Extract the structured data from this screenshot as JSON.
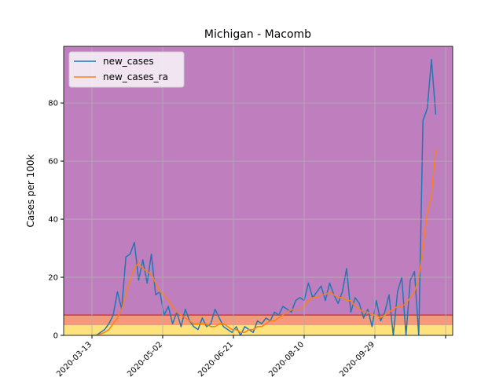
{
  "chart_data": {
    "type": "line",
    "title": "Michigan - Macomb",
    "y_label": "Cases per 100k",
    "x": [
      "2020-03-13",
      "2020-03-16",
      "2020-03-19",
      "2020-03-22",
      "2020-03-25",
      "2020-03-28",
      "2020-03-31",
      "2020-04-03",
      "2020-04-06",
      "2020-04-09",
      "2020-04-12",
      "2020-04-15",
      "2020-04-18",
      "2020-04-21",
      "2020-04-24",
      "2020-04-27",
      "2020-04-30",
      "2020-05-03",
      "2020-05-06",
      "2020-05-09",
      "2020-05-12",
      "2020-05-15",
      "2020-05-18",
      "2020-05-21",
      "2020-05-24",
      "2020-05-27",
      "2020-05-30",
      "2020-06-02",
      "2020-06-05",
      "2020-06-08",
      "2020-06-11",
      "2020-06-14",
      "2020-06-17",
      "2020-06-20",
      "2020-06-23",
      "2020-06-26",
      "2020-06-29",
      "2020-07-02",
      "2020-07-05",
      "2020-07-08",
      "2020-07-11",
      "2020-07-14",
      "2020-07-17",
      "2020-07-20",
      "2020-07-23",
      "2020-07-26",
      "2020-07-29",
      "2020-08-01",
      "2020-08-04",
      "2020-08-07",
      "2020-08-10",
      "2020-08-13",
      "2020-08-16",
      "2020-08-19",
      "2020-08-22",
      "2020-08-25",
      "2020-08-28",
      "2020-08-31",
      "2020-09-03",
      "2020-09-06",
      "2020-09-09",
      "2020-09-12",
      "2020-09-15",
      "2020-09-18",
      "2020-09-21",
      "2020-09-24",
      "2020-09-27",
      "2020-09-30",
      "2020-10-03",
      "2020-10-06",
      "2020-10-09",
      "2020-10-12",
      "2020-10-15",
      "2020-10-18",
      "2020-10-21",
      "2020-10-24",
      "2020-10-27",
      "2020-10-30",
      "2020-11-02",
      "2020-11-05",
      "2020-11-08",
      "2020-11-11"
    ],
    "series": [
      {
        "name": "new_cases",
        "color": "#1f77b4",
        "values": [
          0,
          0,
          1,
          2,
          4,
          7,
          15,
          9,
          27,
          28,
          32,
          19,
          26,
          18,
          28,
          14,
          15,
          7,
          10,
          4,
          8,
          3,
          9,
          5,
          3,
          2,
          6,
          3,
          4,
          9,
          6,
          3,
          2,
          1,
          3,
          0,
          3,
          2,
          1,
          5,
          4,
          6,
          5,
          8,
          7,
          10,
          9,
          8,
          12,
          13,
          12,
          18,
          13,
          15,
          17,
          12,
          18,
          14,
          11,
          15,
          23,
          8,
          13,
          11,
          6,
          9,
          3,
          12,
          5,
          8,
          14,
          0,
          15,
          20,
          0,
          19,
          22,
          0,
          74,
          78,
          95,
          76
        ]
      },
      {
        "name": "new_cases_ra",
        "color": "#ff7f0e",
        "values": [
          0,
          0,
          0.5,
          1,
          2,
          4,
          6,
          9,
          14,
          19,
          23,
          25,
          23,
          22,
          21,
          18,
          15,
          14,
          12,
          10,
          8,
          7,
          6,
          5,
          4,
          4,
          4,
          4,
          3,
          3,
          4,
          4,
          3,
          2,
          2,
          1,
          1,
          2,
          2,
          3,
          3,
          4,
          5,
          5,
          6,
          7,
          8,
          9,
          9,
          9,
          10,
          12,
          13,
          13,
          14,
          14,
          15,
          14,
          13,
          13,
          12,
          12,
          10,
          9,
          8,
          8,
          7,
          7,
          6,
          7,
          8,
          9,
          10,
          10,
          11,
          13,
          15,
          20,
          30,
          42,
          48,
          64
        ]
      }
    ],
    "xlim": [
      "2020-02-22",
      "2020-11-23"
    ],
    "xticks": [
      "2020-03-13",
      "2020-05-02",
      "2020-06-21",
      "2020-08-10",
      "2020-09-29",
      {
        "value": "2020-11-18",
        "label": null
      }
    ],
    "ylim": [
      0,
      99.5
    ],
    "yticks": [
      0,
      20,
      40,
      60,
      80
    ],
    "grid": true,
    "legend": "upper left",
    "bands": [
      {
        "lim": [
          0,
          3.5
        ],
        "color": "#fde37c"
      },
      {
        "lim": [
          3.5,
          7
        ],
        "color": "#f49a7c"
      },
      {
        "lim": [
          7,
          99.5
        ],
        "color": "#bf7fbf"
      }
    ],
    "threshold": {
      "value": 7,
      "color": "#d62728"
    }
  }
}
